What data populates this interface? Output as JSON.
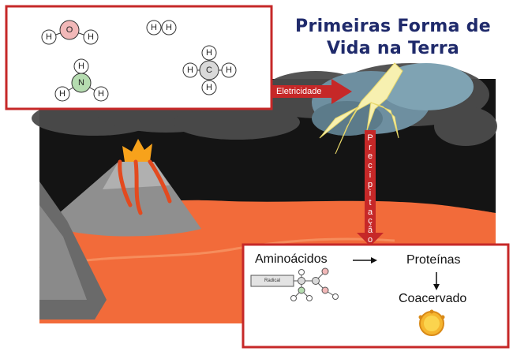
{
  "title": {
    "line1": "Primeiras Forma de",
    "line2": "Vida na Terra"
  },
  "molecules": {
    "water": {
      "center": "O",
      "h1": "H",
      "h2": "H"
    },
    "hydrogen": {
      "a": "H",
      "b": "H"
    },
    "ammonia": {
      "center": "N",
      "h1": "H",
      "h2": "H",
      "h3": "H"
    },
    "methane": {
      "center": "C",
      "h1": "H",
      "h2": "H",
      "h3": "H",
      "h4": "H"
    }
  },
  "labels": {
    "eletricidade": "Eletricidade",
    "precipitacao": [
      "P",
      "r",
      "e",
      "c",
      "i",
      "p",
      "i",
      "t",
      "a",
      "ç",
      "ã",
      "o"
    ]
  },
  "box": {
    "aminoacidos": "Aminoácidos",
    "radical": "Radical",
    "proteinas": "Proteínas",
    "coacervado": "Coacervado"
  },
  "colors": {
    "frame_red": "#c62828",
    "title_blue": "#1f2a6b",
    "oxygen": "#f2b8b8",
    "nitrogen": "#b5dcb0",
    "carbon": "#d9d9d9",
    "lava": "#f26b3a",
    "lightning": "#f7f0b0",
    "coacervate": "#f5b52e"
  }
}
